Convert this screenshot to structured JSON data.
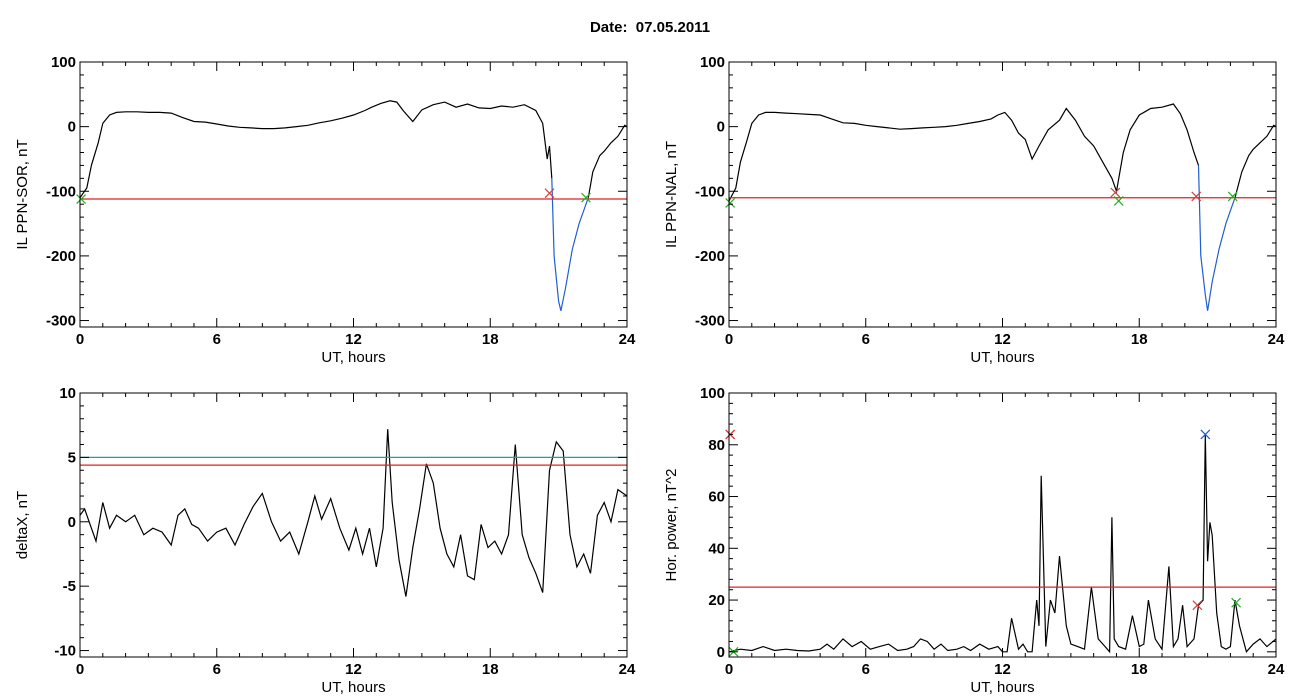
{
  "title": "Date:  07.05.2011",
  "chart_data": [
    {
      "type": "line",
      "xlabel": "UT, hours",
      "ylabel": "IL PPN-SOR, nT",
      "xlim": [
        0,
        24
      ],
      "ylim": [
        -310,
        100
      ],
      "xticks": [
        0,
        6,
        12,
        18,
        24
      ],
      "yticks": [
        -300,
        -200,
        -100,
        0,
        100
      ],
      "series": [
        {
          "color": "#000000",
          "x": [
            0,
            0.3,
            0.5,
            0.8,
            1.0,
            1.3,
            1.6,
            2.0,
            2.5,
            3.0,
            3.5,
            4.0,
            4.5,
            5.0,
            5.5,
            6.0,
            6.5,
            7.0,
            7.5,
            8.0,
            8.5,
            9.0,
            9.5,
            10.0,
            10.5,
            11.0,
            11.5,
            12.0,
            12.5,
            12.8,
            13.2,
            13.6,
            13.9,
            14.2,
            14.6,
            15.0,
            15.5,
            16.0,
            16.5,
            17.0,
            17.5,
            18.0,
            18.5,
            19.0,
            19.5,
            20.0,
            20.3,
            20.5,
            20.6,
            20.7
          ],
          "y": [
            -110,
            -95,
            -60,
            -25,
            5,
            18,
            22,
            23,
            23,
            22,
            22,
            21,
            14,
            8,
            7,
            4,
            1,
            -1,
            -2,
            -3,
            -3,
            -2,
            0,
            2,
            6,
            9,
            13,
            18,
            25,
            30,
            36,
            40,
            38,
            24,
            8,
            26,
            34,
            38,
            30,
            35,
            29,
            28,
            32,
            30,
            34,
            25,
            5,
            -50,
            -30,
            -80
          ]
        },
        {
          "color": "#1f5fd0",
          "x": [
            20.7,
            20.8,
            21.0,
            21.1,
            21.3,
            21.6,
            21.9,
            22.1,
            22.3
          ],
          "y": [
            -80,
            -200,
            -270,
            -285,
            -250,
            -190,
            -150,
            -130,
            -110
          ]
        },
        {
          "color": "#000000",
          "x": [
            22.3,
            22.5,
            22.8,
            23.0,
            23.3,
            23.6,
            23.9,
            24.0
          ],
          "y": [
            -110,
            -70,
            -45,
            -38,
            -25,
            -15,
            2,
            0
          ]
        }
      ],
      "hlines": [
        {
          "y": -112,
          "color": "#e02020"
        }
      ],
      "markers": [
        {
          "x": 0.05,
          "y": -112,
          "color": "#20b020"
        },
        {
          "x": 20.6,
          "y": -103,
          "color": "#d04040"
        },
        {
          "x": 22.2,
          "y": -110,
          "color": "#20b020"
        }
      ]
    },
    {
      "type": "line",
      "xlabel": "UT, hours",
      "ylabel": "IL PPN-NAL, nT",
      "xlim": [
        0,
        24
      ],
      "ylim": [
        -310,
        100
      ],
      "xticks": [
        0,
        6,
        12,
        18,
        24
      ],
      "yticks": [
        -300,
        -200,
        -100,
        0,
        100
      ],
      "series": [
        {
          "color": "#000000",
          "x": [
            0,
            0.3,
            0.5,
            0.8,
            1.0,
            1.3,
            1.6,
            2.0,
            2.5,
            3.0,
            3.5,
            4.0,
            4.5,
            5.0,
            5.5,
            6.0,
            6.5,
            7.0,
            7.5,
            8.0,
            8.5,
            9.0,
            9.5,
            10.0,
            10.5,
            11.0,
            11.5,
            11.8,
            12.1,
            12.4,
            12.7,
            13.0,
            13.3,
            13.6,
            14.0,
            14.5,
            14.8,
            15.2,
            15.6,
            16.0,
            16.4,
            16.8,
            17.0,
            17.3,
            17.6,
            18.0,
            18.5,
            19.0,
            19.5,
            19.8,
            20.1,
            20.4,
            20.6
          ],
          "y": [
            -115,
            -95,
            -55,
            -20,
            5,
            18,
            22,
            22,
            21,
            20,
            19,
            18,
            12,
            6,
            5,
            2,
            0,
            -2,
            -4,
            -3,
            -2,
            -1,
            0,
            2,
            5,
            8,
            12,
            18,
            22,
            10,
            -10,
            -20,
            -50,
            -30,
            -5,
            10,
            28,
            10,
            -15,
            -30,
            -55,
            -80,
            -100,
            -40,
            -5,
            18,
            28,
            30,
            35,
            20,
            -5,
            -40,
            -60
          ]
        },
        {
          "color": "#1f5fd0",
          "x": [
            20.6,
            20.7,
            20.9,
            21.0,
            21.2,
            21.5,
            21.8,
            22.0,
            22.2
          ],
          "y": [
            -60,
            -200,
            -260,
            -285,
            -240,
            -190,
            -150,
            -130,
            -110
          ]
        },
        {
          "color": "#000000",
          "x": [
            22.2,
            22.5,
            22.8,
            23.0,
            23.3,
            23.6,
            23.9,
            24.0
          ],
          "y": [
            -110,
            -70,
            -45,
            -35,
            -25,
            -15,
            2,
            0
          ]
        }
      ],
      "hlines": [
        {
          "y": -110,
          "color": "#e02020"
        }
      ],
      "markers": [
        {
          "x": 0.05,
          "y": -118,
          "color": "#20b020"
        },
        {
          "x": 16.95,
          "y": -102,
          "color": "#d04040"
        },
        {
          "x": 17.1,
          "y": -115,
          "color": "#20b020"
        },
        {
          "x": 20.5,
          "y": -108,
          "color": "#d04040"
        },
        {
          "x": 22.1,
          "y": -108,
          "color": "#20b020"
        }
      ]
    },
    {
      "type": "line",
      "xlabel": "UT, hours",
      "ylabel": "deltaX, nT",
      "xlim": [
        0,
        24
      ],
      "ylim": [
        -10.5,
        10
      ],
      "xticks": [
        0,
        6,
        12,
        18,
        24
      ],
      "yticks": [
        -10,
        -5,
        0,
        5,
        10
      ],
      "series": [
        {
          "color": "#000000",
          "x": [
            0,
            0.2,
            0.5,
            0.7,
            1.0,
            1.3,
            1.6,
            2.0,
            2.4,
            2.8,
            3.2,
            3.6,
            4.0,
            4.3,
            4.6,
            4.9,
            5.2,
            5.6,
            6.0,
            6.4,
            6.8,
            7.2,
            7.6,
            8.0,
            8.4,
            8.8,
            9.2,
            9.6,
            10.0,
            10.3,
            10.6,
            11.0,
            11.4,
            11.8,
            12.1,
            12.4,
            12.7,
            13.0,
            13.3,
            13.5,
            13.7,
            14.0,
            14.3,
            14.6,
            14.9,
            15.2,
            15.5,
            15.8,
            16.1,
            16.4,
            16.7,
            17.0,
            17.3,
            17.6,
            17.9,
            18.2,
            18.5,
            18.8,
            19.1,
            19.4,
            19.7,
            20.0,
            20.3,
            20.6,
            20.9,
            21.2,
            21.5,
            21.8,
            22.1,
            22.4,
            22.7,
            23.0,
            23.3,
            23.6,
            24.0
          ],
          "y": [
            0.5,
            1.0,
            -0.5,
            -1.5,
            1.5,
            -0.5,
            0.5,
            0,
            0.5,
            -1.0,
            -0.5,
            -0.8,
            -1.8,
            0.5,
            1.0,
            -0.2,
            -0.5,
            -1.5,
            -0.8,
            -0.5,
            -1.8,
            -0.2,
            1.2,
            2.2,
            0,
            -1.5,
            -0.8,
            -2.5,
            0,
            2.0,
            0.2,
            1.8,
            -0.5,
            -2.2,
            -0.5,
            -2.5,
            -0.5,
            -3.5,
            -0.5,
            7.2,
            1.5,
            -3.0,
            -5.8,
            -2.0,
            1.0,
            4.5,
            3.0,
            -0.5,
            -2.5,
            -3.5,
            -1.0,
            -4.2,
            -4.5,
            -0.2,
            -2.0,
            -1.5,
            -2.5,
            -1.0,
            6.0,
            -1.0,
            -2.8,
            -4.0,
            -5.5,
            4.0,
            6.2,
            5.5,
            -1.0,
            -3.5,
            -2.5,
            -4.0,
            0.5,
            1.5,
            0,
            2.5,
            2.0
          ]
        }
      ],
      "hlines": [
        {
          "y": 5.0,
          "color": "#20a0a0"
        },
        {
          "y": 4.4,
          "color": "#e02020"
        }
      ],
      "markers": []
    },
    {
      "type": "line",
      "xlabel": "UT, hours",
      "ylabel": "Hor. power, nT^2",
      "xlim": [
        0,
        24
      ],
      "ylim": [
        -2,
        100
      ],
      "xticks": [
        0,
        6,
        12,
        18,
        24
      ],
      "yticks": [
        0,
        20,
        40,
        60,
        80,
        100
      ],
      "series": [
        {
          "color": "#000000",
          "x": [
            0,
            0.5,
            1.0,
            1.5,
            2.0,
            2.5,
            3.0,
            3.5,
            4.0,
            4.3,
            4.6,
            5.0,
            5.4,
            5.8,
            6.2,
            6.6,
            7.0,
            7.4,
            7.8,
            8.1,
            8.4,
            8.7,
            9.0,
            9.3,
            9.6,
            10.0,
            10.3,
            10.6,
            11.0,
            11.4,
            11.8,
            12.0,
            12.2,
            12.4,
            12.7,
            12.9,
            13.1,
            13.3,
            13.5,
            13.6,
            13.7,
            13.9,
            14.1,
            14.3,
            14.5,
            14.8,
            15.0,
            15.3,
            15.6,
            15.9,
            16.2,
            16.5,
            16.7,
            16.8,
            16.9,
            17.1,
            17.4,
            17.7,
            18.0,
            18.2,
            18.4,
            18.7,
            19.0,
            19.3,
            19.5,
            19.7,
            19.9,
            20.1,
            20.4,
            20.6,
            20.8,
            20.9,
            21.0,
            21.1,
            21.2,
            21.4,
            21.6,
            21.8,
            22.0,
            22.2,
            22.4,
            22.7,
            23.0,
            23.3,
            23.6,
            24.0
          ],
          "y": [
            0,
            1,
            0.5,
            2,
            0.5,
            1,
            0.5,
            0.3,
            1,
            3,
            1,
            5,
            2,
            4,
            1,
            2,
            3,
            0.5,
            1,
            2,
            5,
            4,
            1,
            3,
            0.5,
            1,
            2,
            0.5,
            3,
            1,
            2,
            0,
            0,
            13,
            1,
            3,
            0,
            0,
            20,
            10,
            68,
            2,
            20,
            15,
            37,
            10,
            3,
            2,
            1,
            25,
            5,
            2,
            0,
            52,
            5,
            2,
            1,
            14,
            2,
            3,
            20,
            5,
            1,
            33,
            2,
            5,
            18,
            2,
            5,
            18,
            20,
            84,
            35,
            50,
            45,
            15,
            2,
            1,
            2,
            20,
            10,
            0,
            3,
            5,
            2,
            5
          ]
        }
      ],
      "hlines": [
        {
          "y": 25,
          "color": "#e02020"
        }
      ],
      "markers": [
        {
          "x": 0.2,
          "y": 0,
          "color": "#20b020"
        },
        {
          "x": 0.05,
          "y": 84,
          "color": "#e02020"
        },
        {
          "x": 20.55,
          "y": 18,
          "color": "#d04040"
        },
        {
          "x": 20.9,
          "y": 84,
          "color": "#1f5fd0"
        },
        {
          "x": 22.25,
          "y": 19,
          "color": "#20b020"
        }
      ]
    }
  ]
}
